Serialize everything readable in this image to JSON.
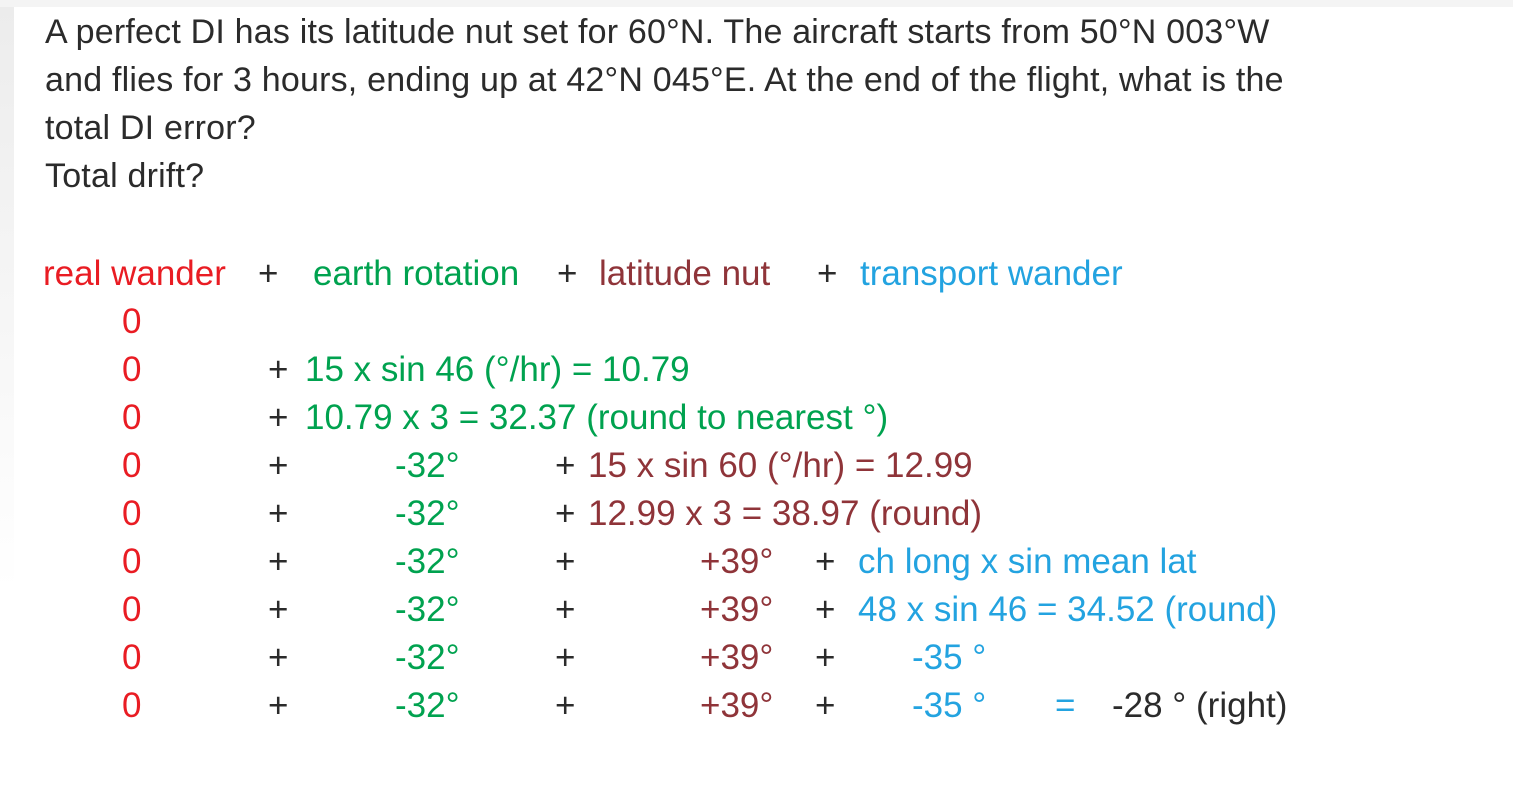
{
  "question": {
    "line1": "A perfect DI has its latitude nut set for 60°N. The aircraft starts from 50°N 003°W",
    "line2": "and flies for 3 hours, ending up at 42°N 045°E. At the end of the flight, what is the",
    "line3": "total DI error?",
    "line4": "Total drift?"
  },
  "formula_header": {
    "real_wander": "real wander",
    "plus1": "+",
    "earth_rotation": "earth rotation",
    "plus2": "+",
    "latitude_nut": "latitude nut",
    "plus3": "+",
    "transport_wander": "transport wander"
  },
  "rows": [
    {
      "real": "0"
    },
    {
      "real": "0",
      "op1": "+",
      "earth": "15 x sin 46 (°/hr) = 10.79"
    },
    {
      "real": "0",
      "op1": "+",
      "earth": "10.79 x 3 = 32.37 (round to nearest °)"
    },
    {
      "real": "0",
      "op1": "+",
      "earth": "-32°",
      "op2": "+",
      "latitude": "15 x sin 60 (°/hr) = 12.99"
    },
    {
      "real": "0",
      "op1": "+",
      "earth": "-32°",
      "op2": "+",
      "latitude": "12.99 x 3 = 38.97 (round)"
    },
    {
      "real": "0",
      "op1": "+",
      "earth": "-32°",
      "op2": "+",
      "latitude": "+39°",
      "op3": "+",
      "transport": "ch long x sin mean lat"
    },
    {
      "real": "0",
      "op1": "+",
      "earth": "-32°",
      "op2": "+",
      "latitude": "+39°",
      "op3": "+",
      "transport": "48 x sin 46 = 34.52 (round)"
    },
    {
      "real": "0",
      "op1": "+",
      "earth": "-32°",
      "op2": "+",
      "latitude": "+39°",
      "op3": "+",
      "transport": "-35 °"
    },
    {
      "real": "0",
      "op1": "+",
      "earth": "-32°",
      "op2": "+",
      "latitude": "+39°",
      "op3": "+",
      "transport": "-35 °",
      "equals": "=",
      "result": "-28 ° (right)"
    }
  ],
  "colors": {
    "real_wander": "#e91c23",
    "earth_rotation": "#00a24f",
    "latitude_nut": "#8f3439",
    "transport_wander": "#23a3e0",
    "body_text": "#2b2b2b",
    "background": "#ffffff"
  }
}
